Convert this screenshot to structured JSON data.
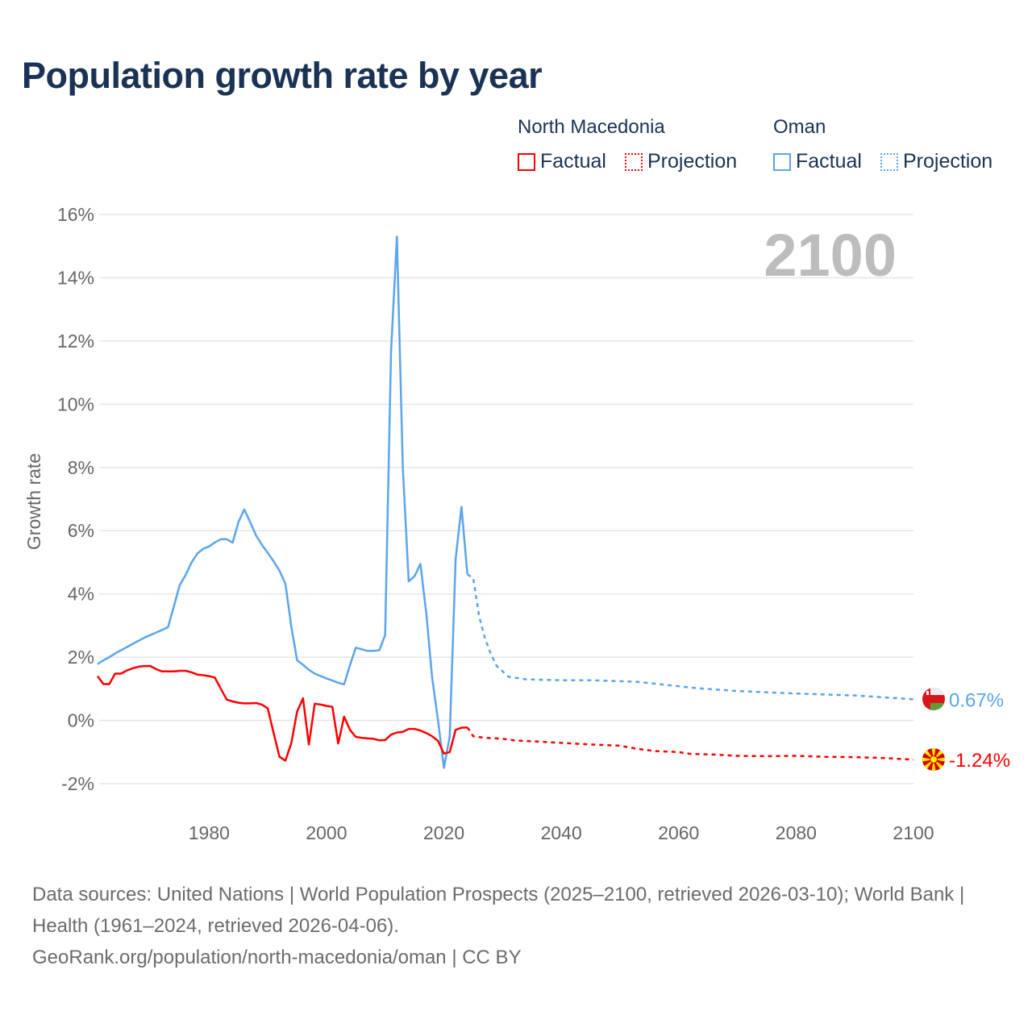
{
  "title": "Population growth rate by year",
  "legend": {
    "groups": [
      {
        "name": "North Macedonia",
        "color": "#ff0000",
        "factual": "Factual",
        "projection": "Projection"
      },
      {
        "name": "Oman",
        "color": "#5aa5ec",
        "factual": "Factual",
        "projection": "Projection"
      }
    ]
  },
  "chart_data": {
    "type": "line",
    "title": "Population growth rate by year",
    "xlabel": "",
    "ylabel": "Growth rate",
    "xlim": [
      1961,
      2100
    ],
    "ylim": [
      -2,
      16
    ],
    "x_ticks": [
      1980,
      2000,
      2020,
      2040,
      2060,
      2080,
      2100
    ],
    "x_tick_labels": [
      "1980",
      "2000",
      "2020",
      "2040",
      "2060",
      "2080",
      "2100"
    ],
    "y_ticks": [
      -2,
      0,
      2,
      4,
      6,
      8,
      10,
      12,
      14,
      16
    ],
    "y_tick_labels": [
      "-2%",
      "0%",
      "2%",
      "4%",
      "6%",
      "8%",
      "10%",
      "12%",
      "14%",
      "16%"
    ],
    "year_display": "2100",
    "grid": true,
    "series": [
      {
        "name": "Oman",
        "color": "#5aa5ec",
        "end_label": "0.67%",
        "factual": [
          [
            1961,
            1.78
          ],
          [
            1962,
            1.9
          ],
          [
            1963,
            2.0
          ],
          [
            1964,
            2.12
          ],
          [
            1965,
            2.22
          ],
          [
            1966,
            2.32
          ],
          [
            1967,
            2.42
          ],
          [
            1968,
            2.52
          ],
          [
            1969,
            2.62
          ],
          [
            1970,
            2.7
          ],
          [
            1971,
            2.78
          ],
          [
            1972,
            2.86
          ],
          [
            1973,
            2.95
          ],
          [
            1974,
            3.6
          ],
          [
            1975,
            4.28
          ],
          [
            1976,
            4.6
          ],
          [
            1977,
            4.99
          ],
          [
            1978,
            5.28
          ],
          [
            1979,
            5.43
          ],
          [
            1980,
            5.5
          ],
          [
            1981,
            5.63
          ],
          [
            1982,
            5.73
          ],
          [
            1983,
            5.73
          ],
          [
            1984,
            5.62
          ],
          [
            1985,
            6.27
          ],
          [
            1986,
            6.67
          ],
          [
            1987,
            6.27
          ],
          [
            1988,
            5.85
          ],
          [
            1989,
            5.55
          ],
          [
            1990,
            5.3
          ],
          [
            1991,
            5.03
          ],
          [
            1992,
            4.73
          ],
          [
            1993,
            4.32
          ],
          [
            1994,
            2.97
          ],
          [
            1995,
            1.9
          ],
          [
            1996,
            1.76
          ],
          [
            1997,
            1.6
          ],
          [
            1998,
            1.48
          ],
          [
            1999,
            1.4
          ],
          [
            2000,
            1.33
          ],
          [
            2001,
            1.26
          ],
          [
            2002,
            1.19
          ],
          [
            2003,
            1.14
          ],
          [
            2004,
            1.75
          ],
          [
            2005,
            2.3
          ],
          [
            2006,
            2.25
          ],
          [
            2007,
            2.2
          ],
          [
            2008,
            2.2
          ],
          [
            2009,
            2.22
          ],
          [
            2010,
            2.7
          ],
          [
            2011,
            11.65
          ],
          [
            2012,
            15.3
          ],
          [
            2013,
            8.0
          ],
          [
            2014,
            4.4
          ],
          [
            2015,
            4.56
          ],
          [
            2016,
            4.95
          ],
          [
            2017,
            3.4
          ],
          [
            2018,
            1.35
          ],
          [
            2019,
            0.0
          ],
          [
            2020,
            -1.5
          ],
          [
            2021,
            -0.5
          ],
          [
            2022,
            5.1
          ],
          [
            2023,
            6.75
          ],
          [
            2024,
            4.62
          ]
        ],
        "projection": [
          [
            2024,
            4.62
          ],
          [
            2025,
            4.5
          ],
          [
            2026,
            3.3
          ],
          [
            2027,
            2.6
          ],
          [
            2028,
            2.1
          ],
          [
            2029,
            1.72
          ],
          [
            2031,
            1.38
          ],
          [
            2034,
            1.3
          ],
          [
            2040,
            1.27
          ],
          [
            2045,
            1.27
          ],
          [
            2050,
            1.24
          ],
          [
            2053,
            1.22
          ],
          [
            2058,
            1.12
          ],
          [
            2063,
            1.02
          ],
          [
            2070,
            0.93
          ],
          [
            2080,
            0.85
          ],
          [
            2090,
            0.79
          ],
          [
            2100,
            0.67
          ]
        ]
      },
      {
        "name": "North Macedonia",
        "color": "#ff0000",
        "end_label": "-1.24%",
        "factual": [
          [
            1961,
            1.4
          ],
          [
            1962,
            1.15
          ],
          [
            1963,
            1.15
          ],
          [
            1964,
            1.48
          ],
          [
            1965,
            1.48
          ],
          [
            1966,
            1.58
          ],
          [
            1967,
            1.65
          ],
          [
            1968,
            1.7
          ],
          [
            1969,
            1.72
          ],
          [
            1970,
            1.72
          ],
          [
            1971,
            1.62
          ],
          [
            1972,
            1.55
          ],
          [
            1973,
            1.55
          ],
          [
            1974,
            1.55
          ],
          [
            1975,
            1.57
          ],
          [
            1976,
            1.57
          ],
          [
            1977,
            1.52
          ],
          [
            1978,
            1.45
          ],
          [
            1979,
            1.43
          ],
          [
            1980,
            1.4
          ],
          [
            1981,
            1.35
          ],
          [
            1982,
            1.0
          ],
          [
            1983,
            0.66
          ],
          [
            1984,
            0.6
          ],
          [
            1985,
            0.56
          ],
          [
            1986,
            0.54
          ],
          [
            1987,
            0.54
          ],
          [
            1988,
            0.55
          ],
          [
            1989,
            0.5
          ],
          [
            1990,
            0.38
          ],
          [
            1991,
            -0.4
          ],
          [
            1992,
            -1.15
          ],
          [
            1993,
            -1.27
          ],
          [
            1994,
            -0.72
          ],
          [
            1995,
            0.28
          ],
          [
            1996,
            0.7
          ],
          [
            1997,
            -0.76
          ],
          [
            1998,
            0.53
          ],
          [
            1999,
            0.5
          ],
          [
            2000,
            0.46
          ],
          [
            2001,
            0.43
          ],
          [
            2002,
            -0.73
          ],
          [
            2003,
            0.12
          ],
          [
            2004,
            -0.3
          ],
          [
            2005,
            -0.52
          ],
          [
            2006,
            -0.55
          ],
          [
            2007,
            -0.57
          ],
          [
            2008,
            -0.58
          ],
          [
            2009,
            -0.63
          ],
          [
            2010,
            -0.62
          ],
          [
            2011,
            -0.45
          ],
          [
            2012,
            -0.38
          ],
          [
            2013,
            -0.36
          ],
          [
            2014,
            -0.27
          ],
          [
            2015,
            -0.27
          ],
          [
            2016,
            -0.32
          ],
          [
            2017,
            -0.4
          ],
          [
            2018,
            -0.5
          ],
          [
            2019,
            -0.65
          ],
          [
            2020,
            -1.05
          ],
          [
            2021,
            -1.0
          ],
          [
            2022,
            -0.3
          ],
          [
            2023,
            -0.23
          ],
          [
            2024,
            -0.22
          ]
        ],
        "projection": [
          [
            2024,
            -0.22
          ],
          [
            2025,
            -0.5
          ],
          [
            2027,
            -0.55
          ],
          [
            2030,
            -0.58
          ],
          [
            2032,
            -0.63
          ],
          [
            2036,
            -0.67
          ],
          [
            2040,
            -0.71
          ],
          [
            2045,
            -0.76
          ],
          [
            2050,
            -0.8
          ],
          [
            2053,
            -0.9
          ],
          [
            2056,
            -0.97
          ],
          [
            2060,
            -1.0
          ],
          [
            2062,
            -1.06
          ],
          [
            2066,
            -1.08
          ],
          [
            2070,
            -1.12
          ],
          [
            2075,
            -1.13
          ],
          [
            2080,
            -1.12
          ],
          [
            2085,
            -1.15
          ],
          [
            2090,
            -1.16
          ],
          [
            2095,
            -1.19
          ],
          [
            2100,
            -1.24
          ]
        ]
      }
    ]
  },
  "footer": {
    "sources": "Data sources: United Nations | World Population Prospects (2025–2100, retrieved 2026-03-10); World Bank | Health (1961–2024, retrieved 2026-04-06).",
    "credit": "GeoRank.org/population/north-macedonia/oman | CC BY"
  }
}
